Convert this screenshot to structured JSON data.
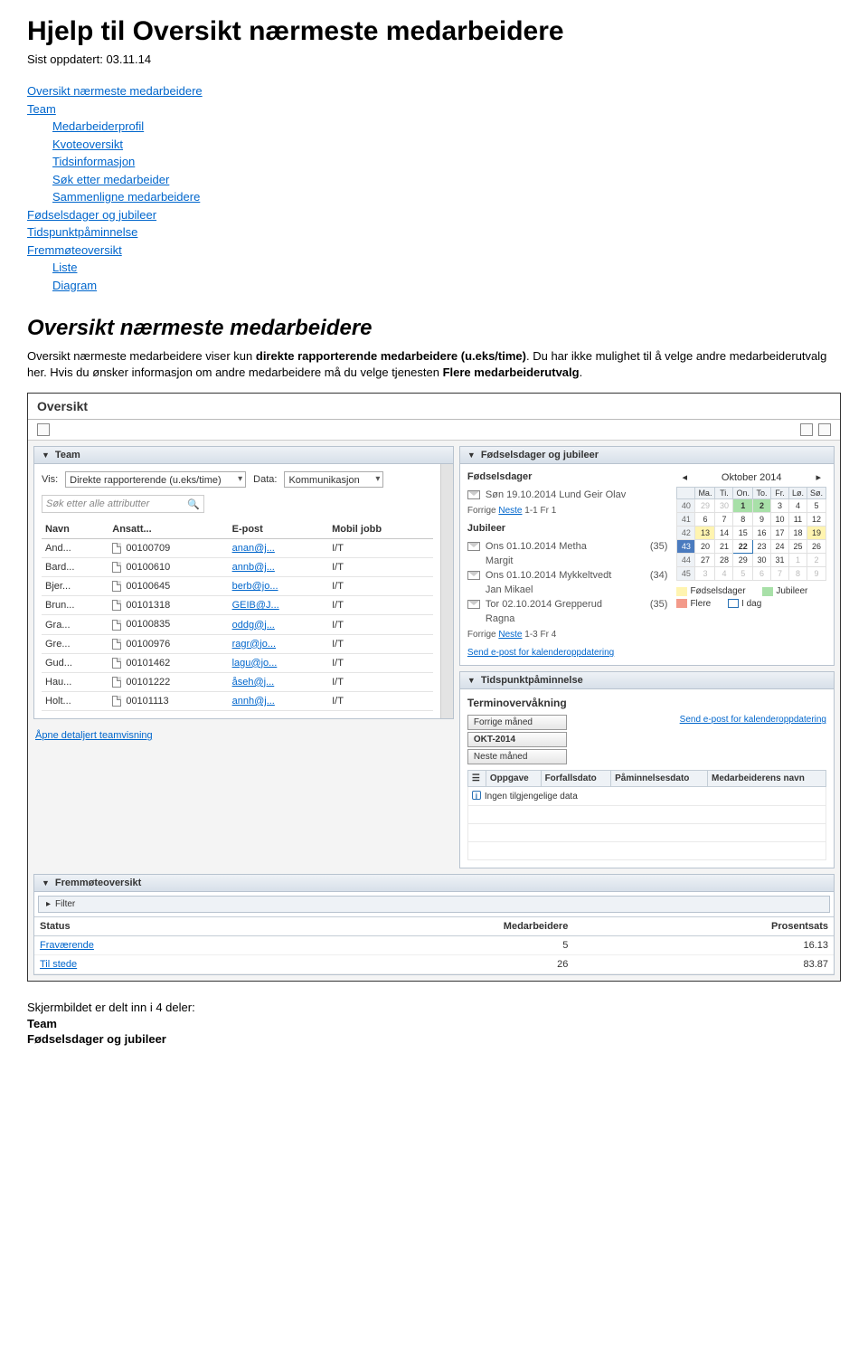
{
  "heading": "Hjelp til Oversikt nærmeste medarbeidere",
  "meta": "Sist oppdatert: 03.11.14",
  "toc": {
    "i0": "Oversikt nærmeste medarbeidere",
    "i1": "Team",
    "i2": "Medarbeiderprofil",
    "i3": "Kvoteoversikt",
    "i4": "Tidsinformasjon",
    "i5": "Søk etter medarbeider",
    "i6": "Sammenligne medarbeidere",
    "i7": "Fødselsdager og jubileer",
    "i8": "Tidspunktpåminnelse",
    "i9": "Fremmøteoversikt",
    "i10": "Liste",
    "i11": "Diagram"
  },
  "section_title": "Oversikt nærmeste medarbeidere",
  "body_pre": "Oversikt nærmeste medarbeidere viser kun ",
  "body_bold1": "direkte rapporterende medarbeidere (u.eks/time)",
  "body_mid": ". Du har ikke mulighet til å velge andre medarbeiderutvalg her. Hvis du ønsker informasjon om andre medarbeidere må du velge tjenesten ",
  "body_bold2": "Flere medarbeiderutvalg",
  "body_end": ".",
  "shot": {
    "title": "Oversikt",
    "team": {
      "panel_title": "Team",
      "vis_label": "Vis:",
      "vis_value": "Direkte rapporterende (u.eks/time)",
      "data_label": "Data:",
      "data_value": "Kommunikasjon",
      "search_placeholder": "Søk etter alle attributter",
      "cols": {
        "c1": "Navn",
        "c2": "Ansatt...",
        "c3": "E-post",
        "c4": "Mobil jobb"
      },
      "rows": [
        {
          "n": "And...",
          "a": "00100709",
          "e": "anan@j...",
          "m": "I/T"
        },
        {
          "n": "Bard...",
          "a": "00100610",
          "e": "annb@j...",
          "m": "I/T"
        },
        {
          "n": "Bjer...",
          "a": "00100645",
          "e": "berb@jo...",
          "m": "I/T"
        },
        {
          "n": "Brun...",
          "a": "00101318",
          "e": "GEIB@J...",
          "m": "I/T"
        },
        {
          "n": "Gra...",
          "a": "00100835",
          "e": "oddg@j...",
          "m": "I/T"
        },
        {
          "n": "Gre...",
          "a": "00100976",
          "e": "ragr@jo...",
          "m": "I/T"
        },
        {
          "n": "Gud...",
          "a": "00101462",
          "e": "lagu@jo...",
          "m": "I/T"
        },
        {
          "n": "Hau...",
          "a": "00101222",
          "e": "åseh@j...",
          "m": "I/T"
        },
        {
          "n": "Holt...",
          "a": "00101113",
          "e": "annh@j...",
          "m": "I/T"
        }
      ],
      "open_link": "Åpne detaljert teamvisning"
    },
    "birth": {
      "panel_title": "Fødselsdager og jubileer",
      "sec1": "Fødselsdager",
      "l1": "Søn 19.10.2014 Lund Geir Olav",
      "pager1_a": "Forrige",
      "pager1_b": "Neste",
      "pager1_c": "1-1 Fr 1",
      "sec2": "Jubileer",
      "j1a": "Ons 01.10.2014 Metha",
      "j1b": "Margit",
      "j1n": "(35)",
      "j2a": "Ons 01.10.2014 Mykkeltvedt",
      "j2b": "Jan Mikael",
      "j2n": "(34)",
      "j3a": "Tor  02.10.2014 Grepperud",
      "j3b": "Ragna",
      "j3n": "(35)",
      "pager2_a": "Forrige",
      "pager2_b": "Neste",
      "pager2_c": "1-3 Fr 4",
      "send": "Send e-post for kalenderoppdatering",
      "cal_title": "Oktober 2014",
      "dow": {
        "d0": "",
        "d1": "Ma.",
        "d2": "Ti.",
        "d3": "On.",
        "d4": "To.",
        "d5": "Fr.",
        "d6": "Lø.",
        "d7": "Sø."
      },
      "legend": {
        "a": "Fødselsdager",
        "b": "Jubileer",
        "c": "Flere",
        "d": "I dag"
      },
      "colors": {
        "birth": "#fff4b0",
        "jub": "#a8e0a8",
        "multi": "#f39a8a",
        "today_border": "#2a72b5"
      }
    },
    "tids": {
      "panel_title": "Tidspunktpåminnelse",
      "term_title": "Terminovervåkning",
      "b1": "Forrige måned",
      "b2": "OKT-2014",
      "b3": "Neste måned",
      "send": "Send e-post for kalenderoppdatering",
      "cols": {
        "c0": "",
        "c1": "Oppgave",
        "c2": "Forfallsdato",
        "c3": "Påminnelsesdato",
        "c4": "Medarbeiderens navn"
      },
      "empty": "Ingen tilgjengelige data"
    },
    "frem": {
      "panel_title": "Fremmøteoversikt",
      "filter": "Filter",
      "cols": {
        "c1": "Status",
        "c2": "Medarbeidere",
        "c3": "Prosentsats"
      },
      "r1": {
        "s": "Fraværende",
        "m": "5",
        "p": "16.13"
      },
      "r2": {
        "s": "Til stede",
        "m": "26",
        "p": "83.87"
      }
    }
  },
  "after1": "Skjermbildet er delt inn i 4 deler:",
  "after2": "Team",
  "after3": "Fødselsdager og jubileer"
}
